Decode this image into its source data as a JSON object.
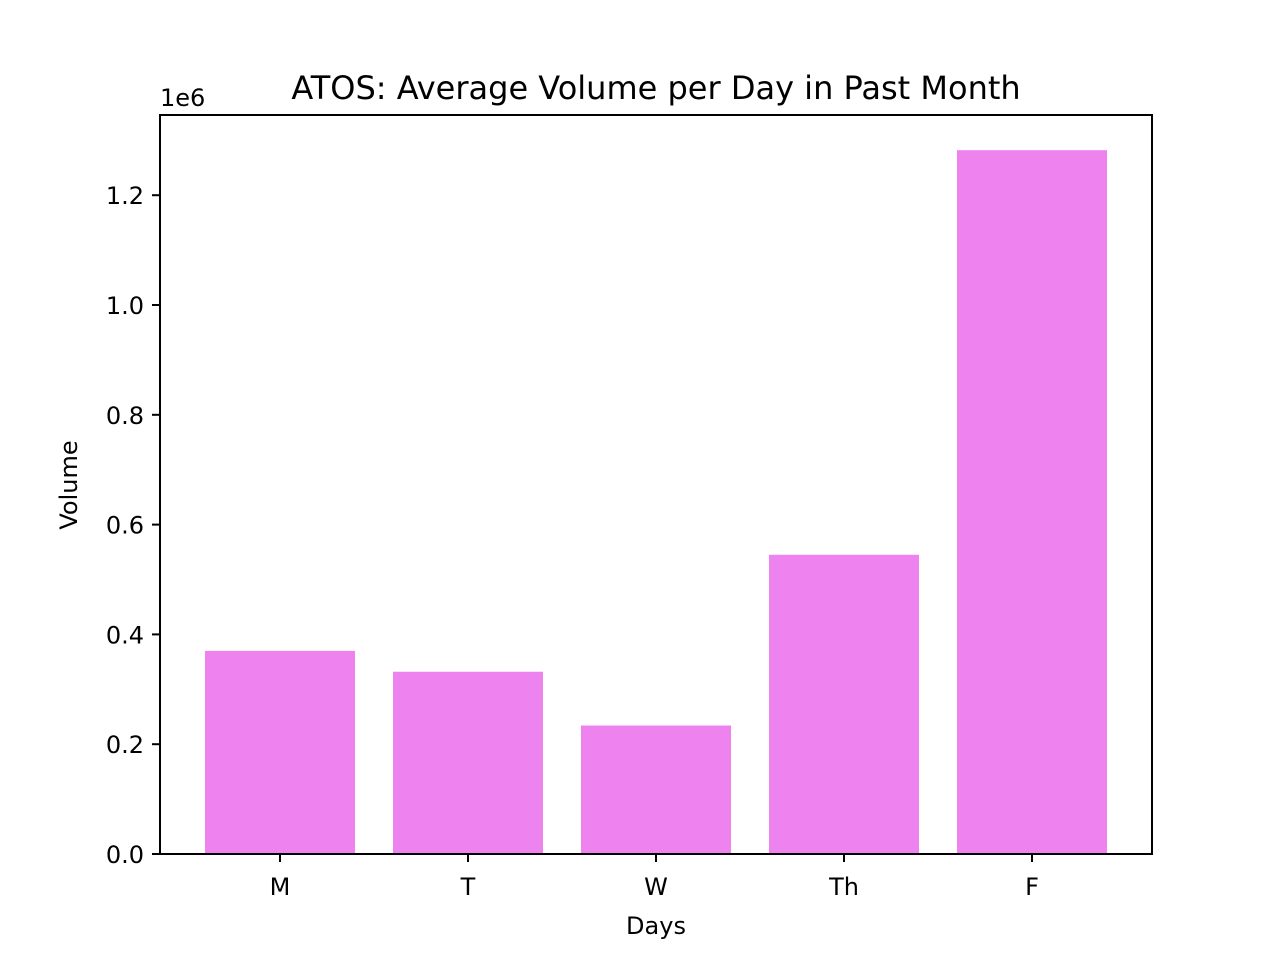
{
  "chart_data": {
    "type": "bar",
    "title": "ATOS: Average Volume per Day in Past Month",
    "xlabel": "Days",
    "ylabel": "Volume",
    "y_offset_label": "1e6",
    "categories": [
      "M",
      "T",
      "W",
      "Th",
      "F"
    ],
    "values": [
      370000,
      332000,
      234000,
      545000,
      1282000
    ],
    "ylim": [
      0,
      1346100
    ],
    "y_ticks": [
      {
        "value": 0,
        "label": "0.0"
      },
      {
        "value": 200000,
        "label": "0.2"
      },
      {
        "value": 400000,
        "label": "0.4"
      },
      {
        "value": 600000,
        "label": "0.6"
      },
      {
        "value": 800000,
        "label": "0.8"
      },
      {
        "value": 1000000,
        "label": "1.0"
      },
      {
        "value": 1200000,
        "label": "1.2"
      }
    ],
    "bar_color": "#ee82ee",
    "grid": false,
    "legend": "none"
  }
}
